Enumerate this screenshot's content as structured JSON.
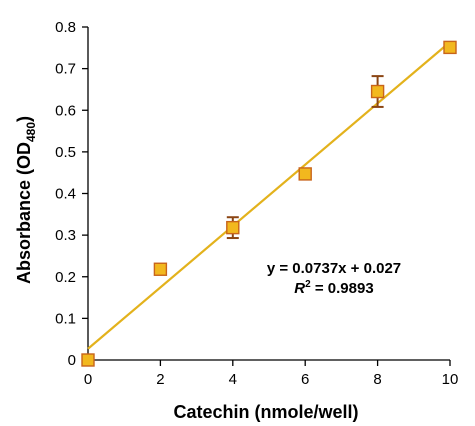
{
  "chart_data": {
    "type": "scatter",
    "xlabel": "Catechin (nmole/well)",
    "ylabel_main": "Absorbance (OD",
    "ylabel_sub": "480",
    "ylabel_close": ")",
    "xlim": [
      0,
      10
    ],
    "ylim": [
      0,
      0.8
    ],
    "xticks": [
      0,
      2,
      4,
      6,
      8,
      10
    ],
    "yticks": [
      0,
      0.1,
      0.2,
      0.3,
      0.4,
      0.5,
      0.6,
      0.7,
      0.8
    ],
    "grid": false,
    "series": [
      {
        "x": [
          0,
          2,
          4,
          6,
          8,
          10
        ],
        "y": [
          0.0,
          0.218,
          0.318,
          0.447,
          0.645,
          0.751
        ],
        "error": [
          0.0,
          0.0,
          0.025,
          0.0,
          0.037,
          0.0
        ],
        "marker_color": "#F2B81E",
        "marker_edge": "#C8641A",
        "error_color": "#8B4513"
      }
    ],
    "trendline": {
      "slope": 0.0737,
      "intercept": 0.027,
      "color": "#E3B21C"
    },
    "annotations": {
      "equation": "y = 0.0737x + 0.027",
      "r2_label": "R",
      "r2_sup": "2",
      "r2_value": " = 0.9893"
    }
  }
}
